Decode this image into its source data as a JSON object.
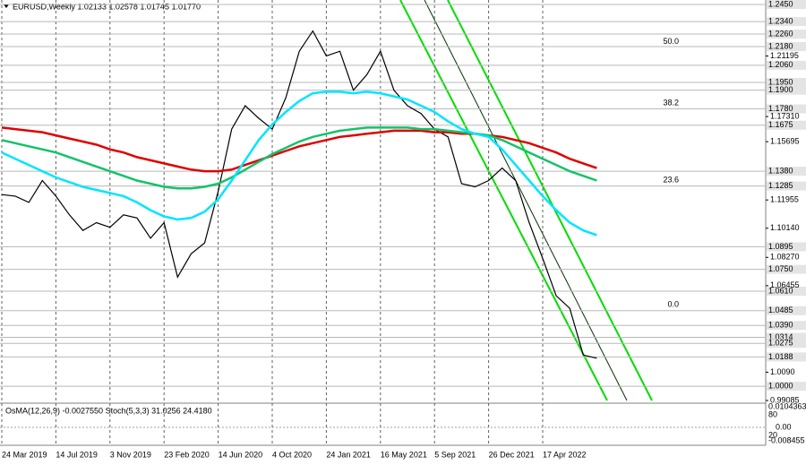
{
  "chart_data": {
    "type": "line",
    "title": "EURUSD,Weekly  1.02133 1.02578 1.01745 1.01770",
    "indicator_title": "OsMA(12,26,9) -0.0027550  Stoch(5,3,3) 31.0256 24.4180",
    "indicator_ticks": [
      "0.0104363",
      "0.00",
      "-0.008455",
      "80",
      "20"
    ],
    "categories": [
      "24 Mar 2019",
      null,
      null,
      null,
      "14 Jul 2019",
      null,
      null,
      null,
      "3 Nov 2019",
      null,
      null,
      null,
      "23 Feb 2020",
      null,
      null,
      null,
      "14 Jun 2020",
      null,
      null,
      null,
      "4 Oct 2020",
      null,
      null,
      null,
      "24 Jan 2021",
      null,
      null,
      null,
      "16 May 2021",
      null,
      null,
      null,
      "5 Sep 2021",
      null,
      null,
      null,
      "26 Dec 2021",
      null,
      null,
      null,
      "17 Apr 2022",
      null,
      null,
      null,
      null
    ],
    "series": [
      {
        "color": "#000000",
        "values": [
          1.123,
          1.122,
          1.118,
          1.132,
          1.122,
          1.11,
          1.1,
          1.105,
          1.102,
          1.11,
          1.108,
          1.095,
          1.105,
          1.07,
          1.085,
          1.092,
          1.125,
          1.165,
          1.18,
          1.172,
          1.165,
          1.185,
          1.215,
          1.228,
          1.212,
          1.215,
          1.19,
          1.2,
          1.215,
          1.19,
          1.18,
          1.175,
          1.165,
          1.16,
          1.13,
          1.128,
          1.132,
          1.14,
          1.132,
          1.105,
          1.082,
          1.058,
          1.05,
          1.02,
          1.018
        ]
      },
      {
        "color": "#e00000",
        "values": [
          1.166,
          1.165,
          1.164,
          1.163,
          1.161,
          1.159,
          1.157,
          1.155,
          1.152,
          1.15,
          1.147,
          1.145,
          1.143,
          1.141,
          1.139,
          1.138,
          1.138,
          1.139,
          1.142,
          1.145,
          1.148,
          1.151,
          1.154,
          1.156,
          1.158,
          1.16,
          1.161,
          1.162,
          1.163,
          1.164,
          1.164,
          1.164,
          1.163,
          1.163,
          1.162,
          1.162,
          1.161,
          1.16,
          1.158,
          1.156,
          1.153,
          1.15,
          1.146,
          1.143,
          1.14
        ]
      },
      {
        "color": "#14c26a",
        "values": [
          1.158,
          1.156,
          1.154,
          1.152,
          1.15,
          1.147,
          1.144,
          1.141,
          1.138,
          1.135,
          1.132,
          1.13,
          1.128,
          1.127,
          1.127,
          1.128,
          1.13,
          1.134,
          1.139,
          1.144,
          1.149,
          1.153,
          1.157,
          1.16,
          1.162,
          1.164,
          1.165,
          1.166,
          1.166,
          1.166,
          1.166,
          1.165,
          1.165,
          1.164,
          1.163,
          1.162,
          1.161,
          1.158,
          1.154,
          1.15,
          1.146,
          1.142,
          1.138,
          1.135,
          1.132
        ]
      },
      {
        "color": "#00e5ff",
        "values": [
          1.15,
          1.146,
          1.142,
          1.138,
          1.134,
          1.131,
          1.128,
          1.126,
          1.124,
          1.122,
          1.118,
          1.113,
          1.109,
          1.107,
          1.108,
          1.112,
          1.12,
          1.132,
          1.145,
          1.158,
          1.168,
          1.176,
          1.183,
          1.188,
          1.189,
          1.189,
          1.188,
          1.189,
          1.188,
          1.186,
          1.184,
          1.18,
          1.176,
          1.17,
          1.165,
          1.162,
          1.16,
          1.152,
          1.142,
          1.132,
          1.122,
          1.113,
          1.105,
          1.1,
          1.097
        ]
      }
    ],
    "ylim": [
      0.99085,
      1.245
    ],
    "levels": [
      {
        "value": 1.245,
        "label": "1.2450"
      },
      {
        "value": 1.234,
        "label": "1.2340"
      },
      {
        "value": 1.226,
        "label": "1.2260"
      },
      {
        "value": 1.218,
        "label": "1.2180"
      },
      {
        "value": 1.206,
        "label": "1.2060"
      },
      {
        "value": 1.195,
        "label": "1.1950"
      },
      {
        "value": 1.19,
        "label": "1.1900"
      },
      {
        "value": 1.178,
        "label": "1.1780"
      },
      {
        "value": 1.1675,
        "label": "1.1675"
      },
      {
        "value": 1.138,
        "label": "1.1380"
      },
      {
        "value": 1.1285,
        "label": "1.1285"
      },
      {
        "value": 1.0895,
        "label": "1.0895"
      },
      {
        "value": 1.075,
        "label": "1.0750"
      },
      {
        "value": 1.061,
        "label": "1.0610"
      },
      {
        "value": 1.0485,
        "label": "1.0485"
      },
      {
        "value": 1.039,
        "label": "1.0390"
      },
      {
        "value": 1.0314,
        "label": "1.0314"
      },
      {
        "value": 1.0275,
        "label": "1.0275"
      },
      {
        "value": 1.0188,
        "label": "1.0188"
      },
      {
        "value": 1.0,
        "label": "1.0000"
      }
    ],
    "yticks": [
      {
        "value": 1.21195,
        "label": "1.21195"
      },
      {
        "value": 1.1731,
        "label": "1.17310"
      },
      {
        "value": 1.15695,
        "label": "1.15695"
      },
      {
        "value": 1.11955,
        "label": "1.11955"
      },
      {
        "value": 1.1014,
        "label": "1.10140"
      },
      {
        "value": 1.0827,
        "label": "1.08270"
      },
      {
        "value": 1.06455,
        "label": "1.06455"
      },
      {
        "value": 1.009,
        "label": "1.0090"
      },
      {
        "value": 0.99085,
        "label": "0.99085"
      }
    ],
    "annotations": [
      {
        "value": 1.221,
        "label": "50.0"
      },
      {
        "value": 1.1817,
        "label": "38.2"
      },
      {
        "value": 1.1323,
        "label": "23.6"
      },
      {
        "value": 1.0524,
        "label": "0.0"
      }
    ]
  }
}
